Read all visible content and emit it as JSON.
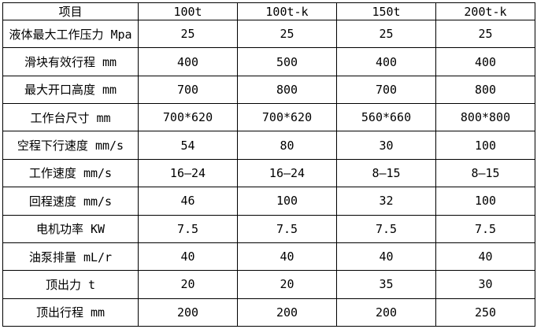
{
  "colors": {
    "background": "#ffffff",
    "border": "#000000",
    "text": "#000000"
  },
  "table": {
    "columns": [
      "项目",
      "100t",
      "100t-k",
      "150t",
      "200t-k"
    ],
    "rows": [
      {
        "label": "液体最大工作压力 Mpa",
        "values": [
          "25",
          "25",
          "25",
          "25"
        ]
      },
      {
        "label": "滑块有效行程 mm",
        "values": [
          "400",
          "500",
          "400",
          "400"
        ]
      },
      {
        "label": "最大开口高度 mm",
        "values": [
          "700",
          "800",
          "700",
          "800"
        ]
      },
      {
        "label": "工作台尺寸 mm",
        "values": [
          "700*620",
          "700*620",
          "560*660",
          "800*800"
        ]
      },
      {
        "label": "空程下行速度 mm/s",
        "values": [
          "54",
          "80",
          "30",
          "100"
        ]
      },
      {
        "label": "工作速度 mm/s",
        "values": [
          "16—24",
          "16—24",
          "8—15",
          "8—15"
        ]
      },
      {
        "label": "回程速度 mm/s",
        "values": [
          "46",
          "100",
          "32",
          "100"
        ]
      },
      {
        "label": "电机功率 KW",
        "values": [
          "7.5",
          "7.5",
          "7.5",
          "7.5"
        ]
      },
      {
        "label": "油泵排量 mL/r",
        "values": [
          "40",
          "40",
          "40",
          "40"
        ]
      },
      {
        "label": "顶出力 t",
        "values": [
          "20",
          "20",
          "35",
          "30"
        ]
      },
      {
        "label": "顶出行程 mm",
        "values": [
          "200",
          "200",
          "200",
          "250"
        ]
      }
    ]
  }
}
